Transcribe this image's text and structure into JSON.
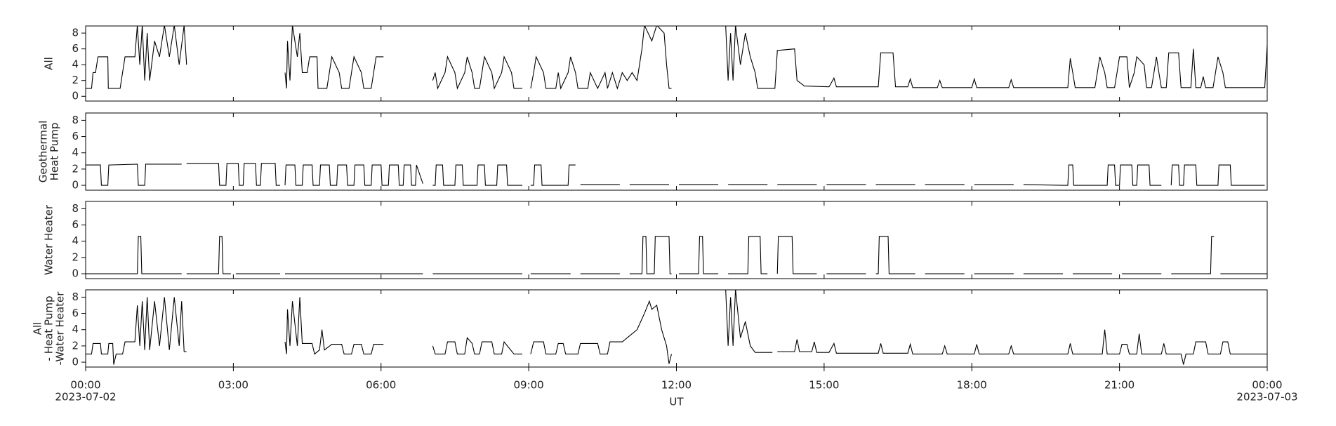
{
  "chart_data": [
    {
      "type": "line",
      "ylabel": [
        "All"
      ],
      "color": "#000000",
      "xlim": [
        0,
        24
      ],
      "ylim": [
        -0.6,
        8.9
      ],
      "yticks": [
        0,
        2,
        4,
        6,
        8
      ],
      "x": [
        0,
        0.12,
        0.15,
        0.2,
        0.25,
        0.45,
        0.46,
        0.7,
        0.75,
        0.8,
        1.0,
        1.05,
        1.1,
        1.15,
        1.2,
        1.25,
        1.3,
        1.4,
        1.5,
        1.6,
        1.7,
        1.8,
        1.9,
        2.0,
        2.05,
        3.0,
        4.05,
        4.08,
        4.1,
        4.15,
        4.2,
        4.3,
        4.35,
        4.4,
        4.5,
        4.55,
        4.7,
        4.72,
        4.9,
        4.95,
        5.0,
        5.15,
        5.2,
        5.35,
        5.4,
        5.45,
        5.6,
        5.65,
        5.8,
        5.85,
        5.9,
        6.05,
        6.5,
        7.05,
        7.1,
        7.15,
        7.3,
        7.35,
        7.5,
        7.55,
        7.7,
        7.75,
        7.85,
        7.9,
        8.0,
        8.05,
        8.1,
        8.25,
        8.3,
        8.45,
        8.5,
        8.65,
        8.7,
        8.87,
        8.95,
        9.04,
        9.1,
        9.15,
        9.3,
        9.35,
        9.55,
        9.6,
        9.65,
        9.8,
        9.85,
        9.95,
        10.0,
        10.2,
        10.25,
        10.4,
        10.55,
        10.6,
        10.7,
        10.8,
        10.9,
        11.0,
        11.1,
        11.2,
        11.3,
        11.35,
        11.5,
        11.6,
        11.75,
        11.8,
        11.85,
        11.9,
        12.5,
        13.0,
        13.05,
        13.1,
        13.15,
        13.2,
        13.3,
        13.4,
        13.5,
        13.6,
        13.65,
        14.0,
        14.05,
        14.4,
        14.45,
        14.6,
        15.1,
        15.2,
        15.25,
        16.1,
        16.15,
        16.4,
        16.45,
        16.7,
        16.75,
        16.8,
        17.3,
        17.35,
        17.4,
        18.0,
        18.05,
        18.1,
        18.75,
        18.8,
        18.85,
        19.95,
        20.0,
        20.05,
        20.1,
        20.5,
        20.55,
        20.6,
        20.7,
        20.75,
        20.9,
        20.95,
        21.0,
        21.15,
        21.2,
        21.3,
        21.35,
        21.5,
        21.55,
        21.65,
        21.7,
        21.75,
        21.8,
        21.85,
        21.95,
        22.0,
        22.2,
        22.25,
        22.45,
        22.5,
        22.55,
        22.65,
        22.7,
        22.75,
        22.9,
        22.95,
        23.0,
        23.1,
        23.15,
        23.95,
        24.0
      ],
      "values": [
        1,
        1,
        3,
        3,
        5,
        5,
        1,
        1,
        3,
        5,
        5,
        9,
        4,
        9,
        2,
        8,
        2,
        7,
        5,
        9,
        5,
        9,
        4,
        9,
        4,
        null,
        3,
        1,
        7,
        2,
        9,
        5,
        8,
        3,
        3,
        5,
        5,
        1,
        1,
        3,
        5,
        3,
        1,
        1,
        3,
        5,
        3,
        1,
        1,
        3,
        5,
        5,
        null,
        2,
        3,
        1,
        3,
        5,
        3,
        1,
        3,
        5,
        3,
        1,
        1,
        3,
        5,
        3,
        1,
        3,
        5,
        3,
        1,
        1,
        null,
        1,
        3,
        5,
        3,
        1,
        1,
        3,
        1,
        3,
        5,
        3,
        1,
        1,
        3,
        1,
        3,
        1,
        3,
        1,
        3,
        2,
        3,
        2,
        6,
        9,
        7,
        9,
        8,
        4,
        1,
        1,
        null,
        9,
        2,
        8,
        2,
        9,
        4,
        8,
        5,
        3,
        1,
        1,
        5.8,
        6,
        2,
        1.3,
        1.2,
        2.3,
        1.2,
        1.2,
        5.5,
        5.5,
        1.2,
        1.2,
        2.2,
        1.1,
        1.1,
        2,
        1.1,
        1.1,
        2.2,
        1.1,
        1.1,
        2.1,
        1.1,
        1.1,
        4.8,
        3,
        1.1,
        1.1,
        3,
        5,
        3,
        1.1,
        1.1,
        3,
        5,
        5,
        1.1,
        3,
        5,
        4,
        1.1,
        1.1,
        3,
        5,
        3,
        1.1,
        1.1,
        5.5,
        5.5,
        1.1,
        1.1,
        6,
        1.1,
        1.1,
        2.5,
        1.1,
        1.1,
        3,
        5,
        3,
        1.1,
        1.1,
        6.5
      ]
    },
    {
      "type": "line",
      "ylabel": [
        "Geothermal",
        "Heat Pump"
      ],
      "color": "#000000",
      "xlim": [
        0,
        24
      ],
      "ylim": [
        -0.6,
        8.9
      ],
      "yticks": [
        0,
        2,
        4,
        6,
        8
      ],
      "x": [
        0,
        0.3,
        0.32,
        0.45,
        0.47,
        1.05,
        1.07,
        1.2,
        1.22,
        1.95,
        2.0,
        2.05,
        2.7,
        2.72,
        2.85,
        2.87,
        3.1,
        3.12,
        3.2,
        3.22,
        3.45,
        3.47,
        3.55,
        3.57,
        3.85,
        3.87,
        3.95,
        4.0,
        4.05,
        4.07,
        4.25,
        4.27,
        4.4,
        4.42,
        4.6,
        4.62,
        4.75,
        4.77,
        4.95,
        4.97,
        5.1,
        5.12,
        5.3,
        5.32,
        5.45,
        5.47,
        5.65,
        5.67,
        5.8,
        5.82,
        6.0,
        6.02,
        6.15,
        6.17,
        6.35,
        6.37,
        6.45,
        6.47,
        6.6,
        6.62,
        6.7,
        6.72,
        6.85,
        6.95,
        7.05,
        7.1,
        7.12,
        7.25,
        7.27,
        7.5,
        7.52,
        7.65,
        7.67,
        7.95,
        7.97,
        8.1,
        8.12,
        8.35,
        8.37,
        8.55,
        8.57,
        8.87,
        8.95,
        9.04,
        9.1,
        9.12,
        9.25,
        9.27,
        9.8,
        9.82,
        9.95,
        10.0,
        10.05,
        10.85,
        10.95,
        11.05,
        11.85,
        11.95,
        12.05,
        12.85,
        12.95,
        13.05,
        13.85,
        13.95,
        14.05,
        14.85,
        14.95,
        15.05,
        15.85,
        15.95,
        16.05,
        16.85,
        16.95,
        17.05,
        17.85,
        17.95,
        18.05,
        18.85,
        18.95,
        19.05,
        19.85,
        19.95,
        19.97,
        20.05,
        20.07,
        20.75,
        20.77,
        20.9,
        20.92,
        21.0,
        21.02,
        21.25,
        21.27,
        21.35,
        21.37,
        21.6,
        21.62,
        21.85,
        21.95,
        22.05,
        22.07,
        22.2,
        22.22,
        22.3,
        22.32,
        22.55,
        22.57,
        23.0,
        23.02,
        23.25,
        23.27,
        23.95
      ],
      "values": [
        2.5,
        2.5,
        0,
        0,
        2.5,
        2.6,
        0,
        0,
        2.6,
        2.6,
        null,
        2.7,
        2.7,
        0,
        0,
        2.7,
        2.7,
        0,
        0,
        2.7,
        2.7,
        0,
        0,
        2.7,
        2.7,
        0,
        0,
        null,
        0,
        2.5,
        2.5,
        0,
        0,
        2.5,
        2.5,
        0,
        0,
        2.5,
        2.5,
        0,
        0,
        2.5,
        2.5,
        0,
        0,
        2.5,
        2.5,
        0,
        0,
        2.5,
        2.5,
        0,
        0,
        2.5,
        2.5,
        0,
        0,
        2.5,
        2.5,
        0,
        0,
        2.5,
        0.2,
        null,
        0,
        0,
        2.5,
        2.5,
        0,
        0,
        2.5,
        2.5,
        0,
        0,
        2.5,
        2.5,
        0,
        0,
        2.5,
        2.5,
        0,
        0,
        null,
        0,
        0,
        2.5,
        2.5,
        0,
        0,
        2.5,
        2.5,
        null,
        0.1,
        0.1,
        null,
        0.1,
        0.1,
        null,
        0.1,
        0.1,
        null,
        0.1,
        0.1,
        null,
        0.1,
        0.1,
        null,
        0.1,
        0.1,
        null,
        0.1,
        0.1,
        null,
        0.1,
        0.1,
        null,
        0.1,
        0.1,
        null,
        0.1,
        0,
        0,
        2.5,
        2.5,
        0,
        0,
        2.5,
        2.5,
        0,
        0,
        2.5,
        2.5,
        0,
        0,
        2.5,
        2.5,
        0,
        0,
        null,
        0,
        2.5,
        2.5,
        0,
        0,
        2.5,
        2.5,
        0,
        0,
        2.5,
        2.5,
        0,
        0
      ]
    },
    {
      "type": "line",
      "ylabel": [
        "Water Heater"
      ],
      "color": "#000000",
      "xlim": [
        0,
        24
      ],
      "ylim": [
        -0.6,
        8.9
      ],
      "yticks": [
        0,
        2,
        4,
        6,
        8
      ],
      "x": [
        0,
        1.05,
        1.07,
        1.12,
        1.14,
        1.95,
        2.0,
        2.05,
        2.7,
        2.72,
        2.77,
        2.79,
        2.95,
        3.0,
        3.05,
        3.95,
        4.0,
        4.05,
        6.85,
        6.95,
        7.05,
        8.87,
        8.95,
        9.04,
        9.85,
        9.95,
        10.05,
        10.85,
        10.95,
        11.05,
        11.3,
        11.32,
        11.38,
        11.4,
        11.55,
        11.57,
        11.85,
        11.87,
        11.9,
        11.95,
        12.05,
        12.45,
        12.47,
        12.53,
        12.55,
        12.85,
        12.95,
        13.05,
        13.45,
        13.47,
        13.7,
        13.72,
        13.85,
        13.95,
        14.05,
        14.07,
        14.35,
        14.37,
        14.85,
        14.95,
        15.05,
        15.85,
        15.95,
        16.05,
        16.1,
        16.12,
        16.3,
        16.32,
        16.85,
        16.95,
        17.05,
        17.85,
        17.95,
        18.05,
        18.85,
        18.95,
        19.05,
        19.85,
        19.95,
        20.05,
        20.85,
        20.95,
        21.05,
        21.85,
        21.95,
        22.05,
        22.85,
        22.87,
        22.92,
        22.95,
        23.05,
        24.0
      ],
      "values": [
        0,
        0,
        4.6,
        4.6,
        0,
        0,
        null,
        0,
        0,
        4.6,
        4.6,
        0,
        0,
        null,
        0,
        0,
        null,
        0,
        0,
        null,
        0,
        0,
        null,
        0,
        0,
        null,
        0,
        0,
        null,
        0,
        0,
        4.6,
        4.6,
        0,
        0,
        4.6,
        4.6,
        0,
        0,
        null,
        0,
        0,
        4.6,
        4.6,
        0,
        0,
        null,
        0,
        0,
        4.6,
        4.6,
        0,
        0,
        null,
        0,
        4.6,
        4.6,
        0,
        0,
        null,
        0,
        0,
        null,
        0,
        0,
        4.6,
        4.6,
        0,
        0,
        null,
        0,
        0,
        null,
        0,
        0,
        null,
        0,
        0,
        null,
        0,
        0,
        null,
        0,
        0,
        null,
        0,
        0,
        4.6,
        4.6,
        null,
        0,
        0
      ]
    },
    {
      "type": "line",
      "ylabel": [
        "All",
        "- Heat Pump",
        "-Water Heater"
      ],
      "color": "#000000",
      "xlim": [
        0,
        24
      ],
      "ylim": [
        -0.6,
        8.9
      ],
      "yticks": [
        0,
        2,
        4,
        6,
        8
      ],
      "xlabel": "UT",
      "xticks": [
        {
          "value": 0,
          "label": "00:00",
          "date": "2023-07-02"
        },
        {
          "value": 3,
          "label": "03:00"
        },
        {
          "value": 6,
          "label": "06:00"
        },
        {
          "value": 9,
          "label": "09:00"
        },
        {
          "value": 12,
          "label": "12:00"
        },
        {
          "value": 15,
          "label": "15:00"
        },
        {
          "value": 18,
          "label": "18:00"
        },
        {
          "value": 21,
          "label": "21:00"
        },
        {
          "value": 24,
          "label": "00:00",
          "date": "2023-07-03"
        }
      ],
      "x": [
        0,
        0.12,
        0.15,
        0.3,
        0.32,
        0.45,
        0.47,
        0.55,
        0.57,
        0.62,
        0.75,
        0.8,
        1.0,
        1.05,
        1.1,
        1.15,
        1.2,
        1.25,
        1.3,
        1.4,
        1.5,
        1.6,
        1.7,
        1.8,
        1.9,
        1.95,
        2.0,
        2.05,
        3.0,
        4.05,
        4.08,
        4.1,
        4.15,
        4.2,
        4.3,
        4.35,
        4.4,
        4.6,
        4.65,
        4.75,
        4.8,
        4.85,
        5.0,
        5.2,
        5.25,
        5.4,
        5.45,
        5.6,
        5.65,
        5.8,
        5.85,
        6.05,
        6.5,
        7.05,
        7.1,
        7.3,
        7.35,
        7.5,
        7.55,
        7.7,
        7.75,
        7.85,
        7.9,
        8.0,
        8.05,
        8.25,
        8.3,
        8.45,
        8.5,
        8.7,
        8.87,
        8.95,
        9.04,
        9.1,
        9.3,
        9.35,
        9.55,
        9.6,
        9.7,
        9.75,
        10.0,
        10.05,
        10.4,
        10.45,
        10.6,
        10.65,
        10.9,
        11.0,
        11.2,
        11.35,
        11.45,
        11.5,
        11.6,
        11.7,
        11.8,
        11.85,
        11.9,
        12.5,
        13.0,
        13.05,
        13.1,
        13.15,
        13.2,
        13.3,
        13.4,
        13.5,
        13.6,
        13.95,
        14.0,
        14.05,
        14.4,
        14.45,
        14.5,
        14.75,
        14.8,
        14.85,
        15.1,
        15.2,
        15.25,
        16.1,
        16.15,
        16.2,
        16.7,
        16.75,
        16.8,
        17.4,
        17.45,
        17.5,
        18.05,
        18.1,
        18.15,
        18.75,
        18.8,
        18.85,
        19.95,
        20.0,
        20.05,
        20.65,
        20.7,
        20.75,
        21.0,
        21.05,
        21.15,
        21.2,
        21.35,
        21.4,
        21.45,
        21.85,
        21.9,
        21.95,
        22.25,
        22.3,
        22.35,
        22.5,
        22.55,
        22.75,
        22.8,
        23.05,
        23.1,
        23.2,
        23.25,
        23.95,
        24.0
      ],
      "values": [
        1,
        1,
        2.3,
        2.3,
        1,
        1,
        2.3,
        2.3,
        -0.3,
        1,
        1,
        2.5,
        2.5,
        7,
        2,
        7.5,
        1.5,
        8,
        1.5,
        7.5,
        2,
        8,
        1.5,
        8,
        2,
        7.5,
        1.3,
        1.3,
        null,
        2.5,
        1,
        6.5,
        2,
        7.5,
        2,
        8,
        2.3,
        2.3,
        1,
        1.5,
        4,
        1.5,
        2.2,
        2.2,
        1,
        1,
        2.2,
        2.2,
        1,
        1,
        2.2,
        2.2,
        null,
        2,
        1,
        1,
        2.5,
        2.5,
        1,
        1,
        3,
        2.3,
        1,
        1,
        2.5,
        2.5,
        1,
        1,
        2.5,
        1,
        1,
        null,
        1,
        2.5,
        2.5,
        1,
        1,
        2.3,
        2.3,
        1,
        1,
        2.3,
        2.3,
        1,
        1,
        2.5,
        2.5,
        3,
        4,
        6,
        7.5,
        6.5,
        7,
        4,
        2,
        -0.2,
        1,
        null,
        9,
        2,
        8,
        2,
        9,
        3,
        5,
        2,
        1.2,
        1.2,
        null,
        1.3,
        1.3,
        2.8,
        1.3,
        1.3,
        2.5,
        1.2,
        1.2,
        2.3,
        1.1,
        1.1,
        2.3,
        1.1,
        1.1,
        2.2,
        1,
        1,
        2,
        1,
        1,
        2.2,
        1,
        1,
        2,
        1,
        1,
        2.3,
        1,
        1,
        4,
        1,
        1,
        2.2,
        2.2,
        1,
        1,
        3.5,
        1,
        1,
        2.3,
        1,
        1,
        -0.3,
        1,
        1,
        2.5,
        2.5,
        1,
        1,
        2.5,
        2.5,
        1,
        1,
        1
      ]
    }
  ]
}
